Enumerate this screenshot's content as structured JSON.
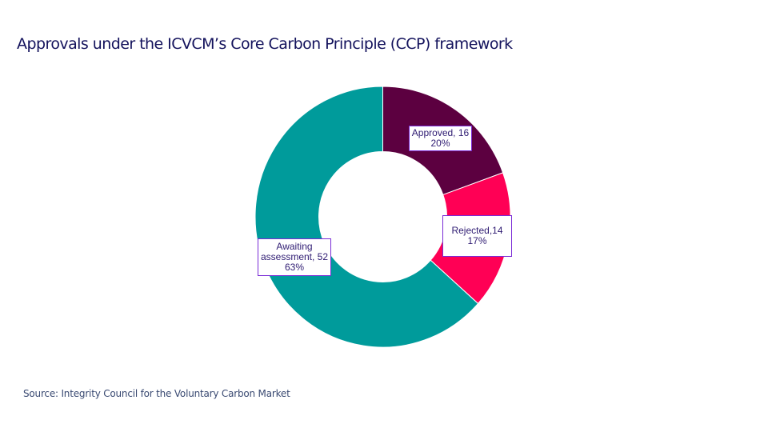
{
  "header": {
    "title": "Approvals under the ICVCM’s Core Carbon Principle (CCP) framework"
  },
  "footer": {
    "source": "Source: Integrity Council for the Voluntary Carbon Market"
  },
  "labels": {
    "approved": {
      "line1": "Approved, 16",
      "line2": "20%"
    },
    "rejected": {
      "line1": "Rejected,14",
      "line2": "17%"
    },
    "awaiting": {
      "line1": "Awaiting",
      "line2": "assessment, 52",
      "line3": "63%"
    }
  },
  "chart_data": {
    "type": "pie",
    "subtype": "donut",
    "title": "Approvals under the ICVCM’s Core Carbon Principle (CCP) framework",
    "categories": [
      "Approved",
      "Rejected",
      "Awaiting assessment"
    ],
    "values": [
      16,
      14,
      52
    ],
    "percentages": [
      20,
      17,
      63
    ],
    "colors": [
      "#5c0040",
      "#ff0055",
      "#009b9b"
    ],
    "data_labels": [
      "Approved, 16\n20%",
      "Rejected,14\n17%",
      "Awaiting assessment, 52\n63%"
    ],
    "start_angle_deg": 0,
    "direction": "clockwise",
    "legend": "none",
    "source": "Source: Integrity Council for the Voluntary Carbon Market"
  }
}
